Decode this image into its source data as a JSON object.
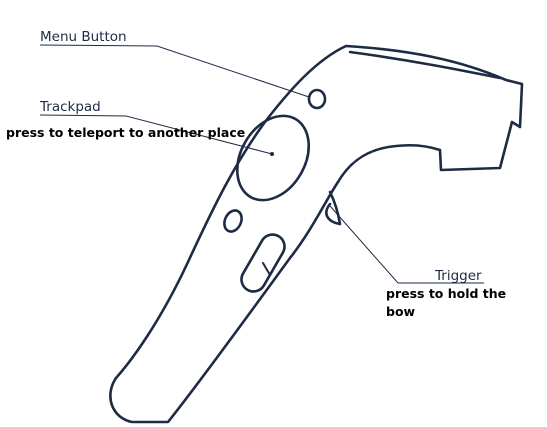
{
  "labels": {
    "menu_button": "Menu Button",
    "trackpad": "Trackpad",
    "trackpad_note": "press to teleport to another place",
    "trigger": "Trigger",
    "trigger_note_line1": "press to hold the",
    "trigger_note_line2": "bow"
  },
  "colors": {
    "outline": "#1e2b44",
    "note_text": "#000000",
    "background": "#ffffff"
  }
}
